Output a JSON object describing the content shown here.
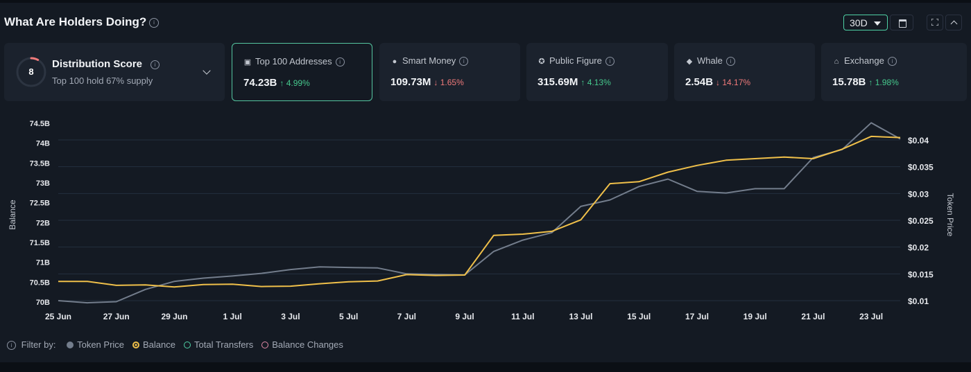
{
  "header": {
    "title": "What Are Holders Doing?",
    "info_icon": "i",
    "range": "30D",
    "calendar_icon": "calendar-icon",
    "fullscreen_icon": "fullscreen-icon",
    "collapse_icon": "chevron-up-icon"
  },
  "distribution": {
    "score": "8",
    "score_fraction": 0.08,
    "title": "Distribution Score",
    "subtitle": "Top 100 hold 67% supply"
  },
  "categories": [
    {
      "icon": "wallet-icon",
      "glyph": "▣",
      "label": "Top 100 Addresses",
      "value": "74.23B",
      "change": "↑ 4.99%",
      "direction": "up",
      "active": true
    },
    {
      "icon": "smart-money-icon",
      "glyph": "●",
      "label": "Smart Money",
      "value": "109.73M",
      "change": "↓ 1.65%",
      "direction": "down",
      "active": false
    },
    {
      "icon": "public-figure-icon",
      "glyph": "✪",
      "label": "Public Figure",
      "value": "315.69M",
      "change": "↑ 4.13%",
      "direction": "up",
      "active": false
    },
    {
      "icon": "whale-icon",
      "glyph": "◆",
      "label": "Whale",
      "value": "2.54B",
      "change": "↓ 14.17%",
      "direction": "down",
      "active": false
    },
    {
      "icon": "exchange-icon",
      "glyph": "⌂",
      "label": "Exchange",
      "value": "15.78B",
      "change": "↑ 1.98%",
      "direction": "up",
      "active": false
    }
  ],
  "chart_data": {
    "type": "line",
    "xlabel": "",
    "ylabel": "Balance",
    "y2label": "Token Price",
    "ylim": [
      70,
      74.5
    ],
    "y2lim": [
      0.01,
      0.04
    ],
    "y_ticks": [
      "70B",
      "70.5B",
      "71B",
      "71.5B",
      "72B",
      "72.5B",
      "73B",
      "73.5B",
      "74B",
      "74.5B"
    ],
    "y2_ticks": [
      "$0.01",
      "$0.015",
      "$0.02",
      "$0.025",
      "$0.03",
      "$0.035",
      "$0.04"
    ],
    "x_ticks": [
      "25 Jun",
      "27 Jun",
      "29 Jun",
      "1 Jul",
      "3 Jul",
      "5 Jul",
      "7 Jul",
      "9 Jul",
      "11 Jul",
      "13 Jul",
      "15 Jul",
      "17 Jul",
      "19 Jul",
      "21 Jul",
      "23 Jul"
    ],
    "grid": true,
    "colors": {
      "balance": "#f0c04a",
      "price": "#737d8c"
    },
    "series": [
      {
        "name": "Balance",
        "axis": "left",
        "values": [
          70.52,
          70.52,
          70.42,
          70.43,
          70.38,
          70.44,
          70.45,
          70.39,
          70.4,
          70.46,
          70.51,
          70.53,
          70.69,
          70.67,
          70.68,
          71.68,
          71.71,
          71.78,
          72.07,
          72.98,
          73.03,
          73.27,
          73.44,
          73.57,
          73.61,
          73.65,
          73.61,
          73.85,
          74.17,
          74.14
        ]
      },
      {
        "name": "Token Price",
        "axis": "right",
        "values": [
          0.01,
          0.0096,
          0.0098,
          0.0121,
          0.0136,
          0.0142,
          0.0146,
          0.0151,
          0.0158,
          0.0163,
          0.0162,
          0.0161,
          0.015,
          0.0149,
          0.0148,
          0.0192,
          0.0213,
          0.0227,
          0.0276,
          0.0288,
          0.0313,
          0.0327,
          0.0304,
          0.0301,
          0.0309,
          0.0309,
          0.0367,
          0.0382,
          0.0432,
          0.0402
        ]
      }
    ]
  },
  "legend": {
    "filter_label": "Filter by:",
    "items": [
      {
        "label": "Token Price",
        "color": "#737d8c",
        "style": "filled"
      },
      {
        "label": "Balance",
        "color": "#f0c04a",
        "style": "selected"
      },
      {
        "label": "Total Transfers",
        "color": "#4fd1a5",
        "style": "outline"
      },
      {
        "label": "Balance Changes",
        "color": "#e38aa8",
        "style": "outline"
      }
    ]
  }
}
